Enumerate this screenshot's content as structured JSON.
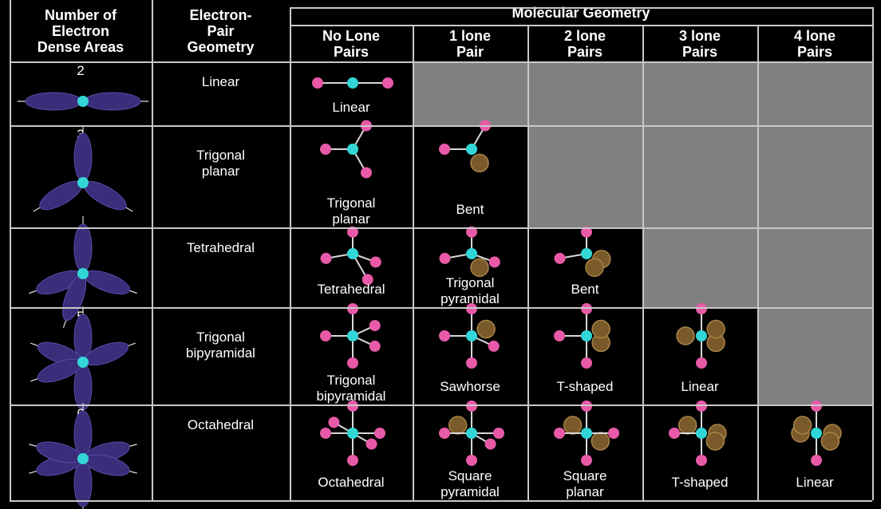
{
  "header": {
    "col1": "Number of\nElectron\nDense Areas",
    "col2": "Electron-\nPair\nGeometry",
    "molecular": "Molecular Geometry",
    "lone_pairs": [
      "No Lone\nPairs",
      "1 lone\nPair",
      "2 lone\nPairs",
      "3 lone\nPairs",
      "4 lone\nPairs"
    ]
  },
  "rows": [
    {
      "count": "2",
      "epg": "Linear",
      "shapes": [
        "Linear"
      ]
    },
    {
      "count": "3",
      "epg": "Trigonal\nplanar",
      "shapes": [
        "Trigonal\nplanar",
        "Bent"
      ]
    },
    {
      "count": "4",
      "epg": "Tetrahedral",
      "shapes": [
        "Tetrahedral",
        "Trigonal\npyramidal",
        "Bent"
      ]
    },
    {
      "count": "5",
      "epg": "Trigonal\nbipyramidal",
      "shapes": [
        "Trigonal\nbipyramidal",
        "Sawhorse",
        "T-shaped",
        "Linear"
      ]
    },
    {
      "count": "6",
      "epg": "Octahedral",
      "shapes": [
        "Octahedral",
        "Square\npyramidal",
        "Square\nplanar",
        "T-shaped",
        "Linear"
      ]
    }
  ],
  "colors": {
    "background": "#000000",
    "empty_cell": "#808080",
    "grid_line": "#c8c8c8",
    "central_atom": "#33d6d6",
    "outer_atom": "#e85aa8",
    "lone_pair": "#7a5a2a",
    "orbital": "#3a2d7a"
  },
  "icons": {
    "electron_domain": "orbital-lobes-icon",
    "molecule": "ball-and-stick-molecule-icon",
    "lone_pair": "lone-pair-lobe-icon"
  }
}
